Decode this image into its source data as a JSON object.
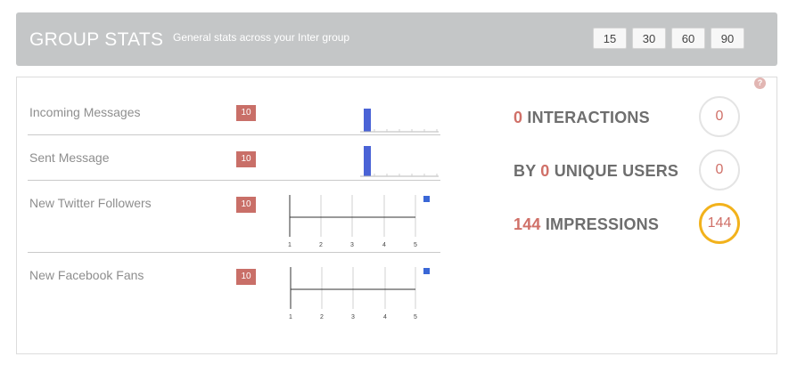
{
  "header": {
    "title": "GROUP STATS",
    "subtitle": "General stats across your Inter group",
    "ranges": [
      "15",
      "30",
      "60",
      "90"
    ]
  },
  "help_icon": "?",
  "metrics": [
    {
      "label": "Incoming Messages",
      "badge": "10"
    },
    {
      "label": "Sent Message",
      "badge": "10"
    },
    {
      "label": "New Twitter Followers",
      "badge": "10"
    },
    {
      "label": "New Facebook Fans",
      "badge": "10"
    }
  ],
  "chart_ticks": [
    "1",
    "2",
    "3",
    "4",
    "5"
  ],
  "stats": [
    {
      "prefix": "",
      "value": "0",
      "suffix": " INTERACTIONS",
      "circle": "0"
    },
    {
      "prefix": "BY ",
      "value": "0",
      "suffix": " UNIQUE USERS",
      "circle": "0"
    },
    {
      "prefix": "",
      "value": "144",
      "suffix": " IMPRESSIONS",
      "circle": "144"
    }
  ],
  "colors": {
    "header_bg": "#c4c6c7",
    "badge": "#c96f68",
    "accent_number": "#d07068",
    "bar_blue": "#4a63d6",
    "ring_highlight": "#f2b21c"
  }
}
